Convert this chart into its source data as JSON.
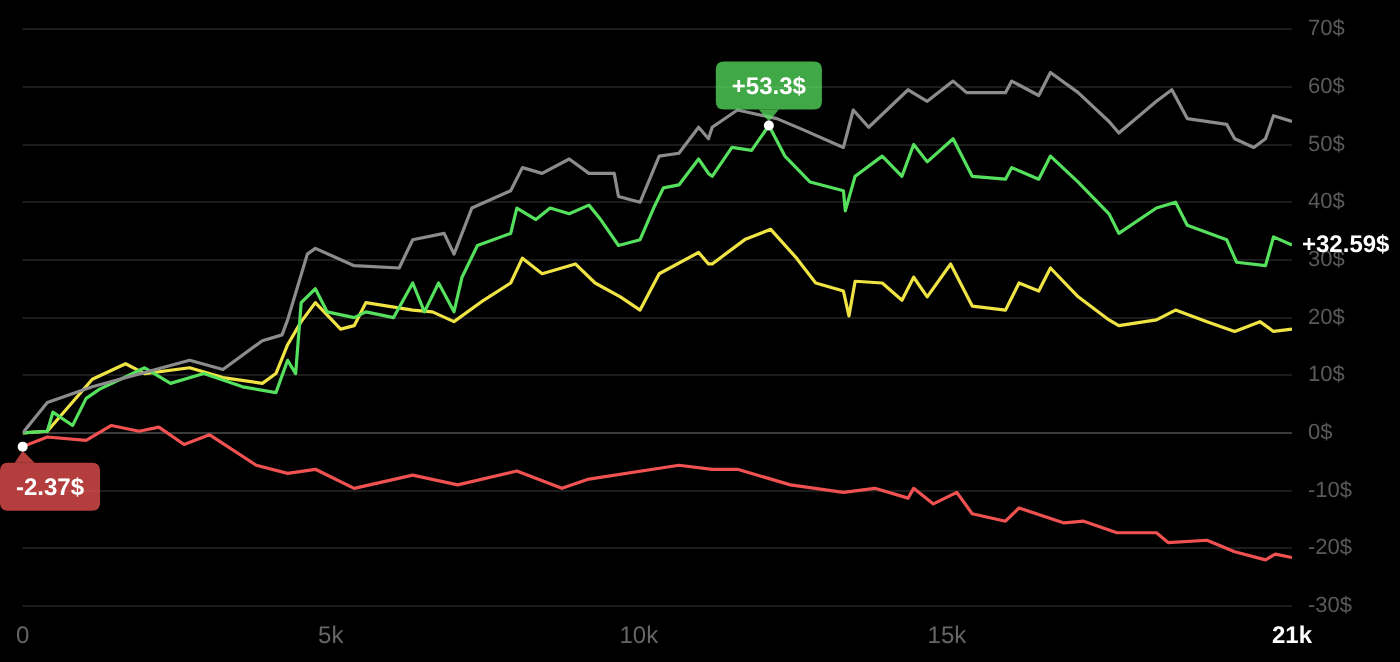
{
  "chart_data": {
    "type": "line",
    "marker": "none",
    "line_style": "solid",
    "grid": "y",
    "legend": false,
    "xlim": [
      0,
      20600
    ],
    "xticks": [
      {
        "value": 0,
        "label": "0"
      },
      {
        "value": 5000,
        "label": "5k"
      },
      {
        "value": 10000,
        "label": "10k"
      },
      {
        "value": 15000,
        "label": "15k"
      },
      {
        "value": 20600,
        "label": "21k"
      }
    ],
    "ylim": [
      -30,
      70
    ],
    "yticks": [
      {
        "value": -30,
        "label": "-30$"
      },
      {
        "value": -20,
        "label": "-20$"
      },
      {
        "value": -10,
        "label": "-10$"
      },
      {
        "value": 0,
        "label": "0$"
      },
      {
        "value": 10,
        "label": "10$"
      },
      {
        "value": 20,
        "label": "20$"
      },
      {
        "value": 30,
        "label": "30$"
      },
      {
        "value": 40,
        "label": "40$"
      },
      {
        "value": 50,
        "label": "50$"
      },
      {
        "value": 60,
        "label": "60$"
      },
      {
        "value": 70,
        "label": "70$"
      }
    ],
    "annotations": [
      {
        "text": "+53.3$",
        "x": 12110,
        "y": 53.3
      },
      {
        "text": "-2.37$",
        "x": 0,
        "y": -2.37
      },
      {
        "text": "+32.59$",
        "x": 20600,
        "y": 32.59
      }
    ],
    "series": [
      {
        "color": "#8c8c8c",
        "x": [
          0,
          400,
          1130,
          2710,
          3250,
          3890,
          4210,
          4300,
          4620,
          4750,
          5380,
          6110,
          6330,
          6840,
          7000,
          7290,
          7920,
          8110,
          8430,
          8870,
          9190,
          9600,
          9670,
          10020,
          10330,
          10650,
          10970,
          11130,
          11190,
          11600,
          12240,
          12680,
          13320,
          13480,
          13730,
          14370,
          14680,
          15100,
          15320,
          15950,
          16050,
          16490,
          16680,
          17130,
          17630,
          17790,
          18400,
          18650,
          18900,
          19540,
          19670,
          19980,
          20170,
          20300,
          20600
        ],
        "values": [
          0,
          5.3,
          8,
          12.6,
          11,
          16,
          17,
          19.6,
          31,
          32,
          29,
          28.6,
          33.5,
          34.6,
          31,
          39,
          42,
          46,
          45,
          47.5,
          45,
          45,
          41,
          40,
          48,
          48.5,
          53,
          51,
          53,
          56,
          54.5,
          52.5,
          49.5,
          56,
          53,
          59.5,
          57.5,
          61,
          59,
          59,
          61,
          58.5,
          62.5,
          59,
          54,
          52,
          57.5,
          59.5,
          54.5,
          53.5,
          51,
          49.5,
          51,
          55,
          54
        ]
      },
      {
        "color": "#55e05e",
        "x": [
          0,
          400,
          490,
          810,
          1030,
          1250,
          1980,
          2400,
          2940,
          3570,
          4110,
          4300,
          4430,
          4520,
          4750,
          4940,
          5380,
          5570,
          6020,
          6330,
          6520,
          6750,
          7000,
          7130,
          7380,
          7920,
          8020,
          8330,
          8560,
          8870,
          9190,
          9380,
          9670,
          10020,
          10240,
          10400,
          10650,
          10970,
          11130,
          11190,
          11510,
          11830,
          12110,
          12370,
          12780,
          13320,
          13350,
          13510,
          13950,
          14270,
          14460,
          14680,
          15100,
          15410,
          15950,
          16050,
          16490,
          16680,
          17130,
          17630,
          17790,
          18400,
          18710,
          18900,
          19540,
          19700,
          20170,
          20300,
          20600
        ],
        "values": [
          0,
          0.3,
          3.6,
          1.3,
          6,
          7.6,
          11.3,
          8.6,
          10.3,
          8,
          7,
          12.6,
          10.3,
          22.6,
          25,
          21,
          20,
          21,
          20,
          26,
          21,
          26,
          21,
          27,
          32.5,
          34.6,
          39,
          37,
          39,
          38,
          39.5,
          37,
          32.5,
          33.5,
          39,
          42.5,
          43,
          47.5,
          45,
          44.5,
          49.5,
          49,
          53.3,
          48,
          43.5,
          42,
          38.5,
          44.5,
          48,
          44.5,
          50,
          47,
          51,
          44.5,
          44,
          46,
          44,
          48,
          43.5,
          38,
          34.6,
          39,
          40,
          36,
          33.5,
          29.6,
          29,
          34,
          32.59
        ]
      },
      {
        "color": "#f0e445",
        "x": [
          0,
          400,
          1130,
          1670,
          1980,
          2710,
          3250,
          3890,
          4110,
          4300,
          4520,
          4750,
          5160,
          5380,
          5570,
          6330,
          6650,
          7000,
          7480,
          7920,
          8110,
          8430,
          8970,
          9290,
          9700,
          10020,
          10330,
          10970,
          11130,
          11190,
          11730,
          12140,
          12560,
          12870,
          13320,
          13410,
          13510,
          13950,
          14270,
          14460,
          14680,
          15060,
          15410,
          15950,
          16170,
          16490,
          16680,
          17130,
          17630,
          17790,
          18400,
          18710,
          19220,
          19670,
          20080,
          20300,
          20600
        ],
        "values": [
          0,
          0.3,
          9.3,
          12,
          10.3,
          11.3,
          9.6,
          8.6,
          10.3,
          15.3,
          19.3,
          22.6,
          18,
          18.6,
          22.6,
          21.3,
          21,
          19.3,
          23,
          26,
          30.3,
          27.6,
          29.3,
          26,
          23.6,
          21.3,
          27.6,
          31.3,
          29.3,
          29.3,
          33.6,
          35.3,
          30.3,
          26,
          24.6,
          20.3,
          26.3,
          26,
          23,
          27,
          23.6,
          29.3,
          22,
          21.3,
          26,
          24.6,
          28.6,
          23.6,
          19.6,
          18.6,
          19.6,
          21.3,
          19.3,
          17.6,
          19.3,
          17.6,
          18
        ]
      },
      {
        "color": "#f05252",
        "x": [
          0,
          400,
          1030,
          1440,
          1890,
          2210,
          2620,
          3030,
          3790,
          4300,
          4750,
          5380,
          6330,
          7060,
          8020,
          8750,
          9190,
          10650,
          11190,
          11600,
          12460,
          13320,
          13830,
          14370,
          14460,
          14780,
          15160,
          15410,
          15950,
          16170,
          16900,
          17220,
          17760,
          18400,
          18590,
          19220,
          19670,
          20170,
          20330,
          20600
        ],
        "values": [
          -2.37,
          -0.7,
          -1.3,
          1.3,
          0.3,
          1,
          -2,
          -0.3,
          -5.6,
          -7,
          -6.3,
          -9.6,
          -7.3,
          -9,
          -6.6,
          -9.6,
          -8,
          -5.6,
          -6.3,
          -6.3,
          -9,
          -10.3,
          -9.6,
          -11.3,
          -9.6,
          -12.3,
          -10.3,
          -14,
          -15.3,
          -13,
          -15.6,
          -15.3,
          -17.3,
          -17.3,
          -19,
          -18.6,
          -20.6,
          -22,
          -21,
          -21.6
        ]
      }
    ]
  }
}
